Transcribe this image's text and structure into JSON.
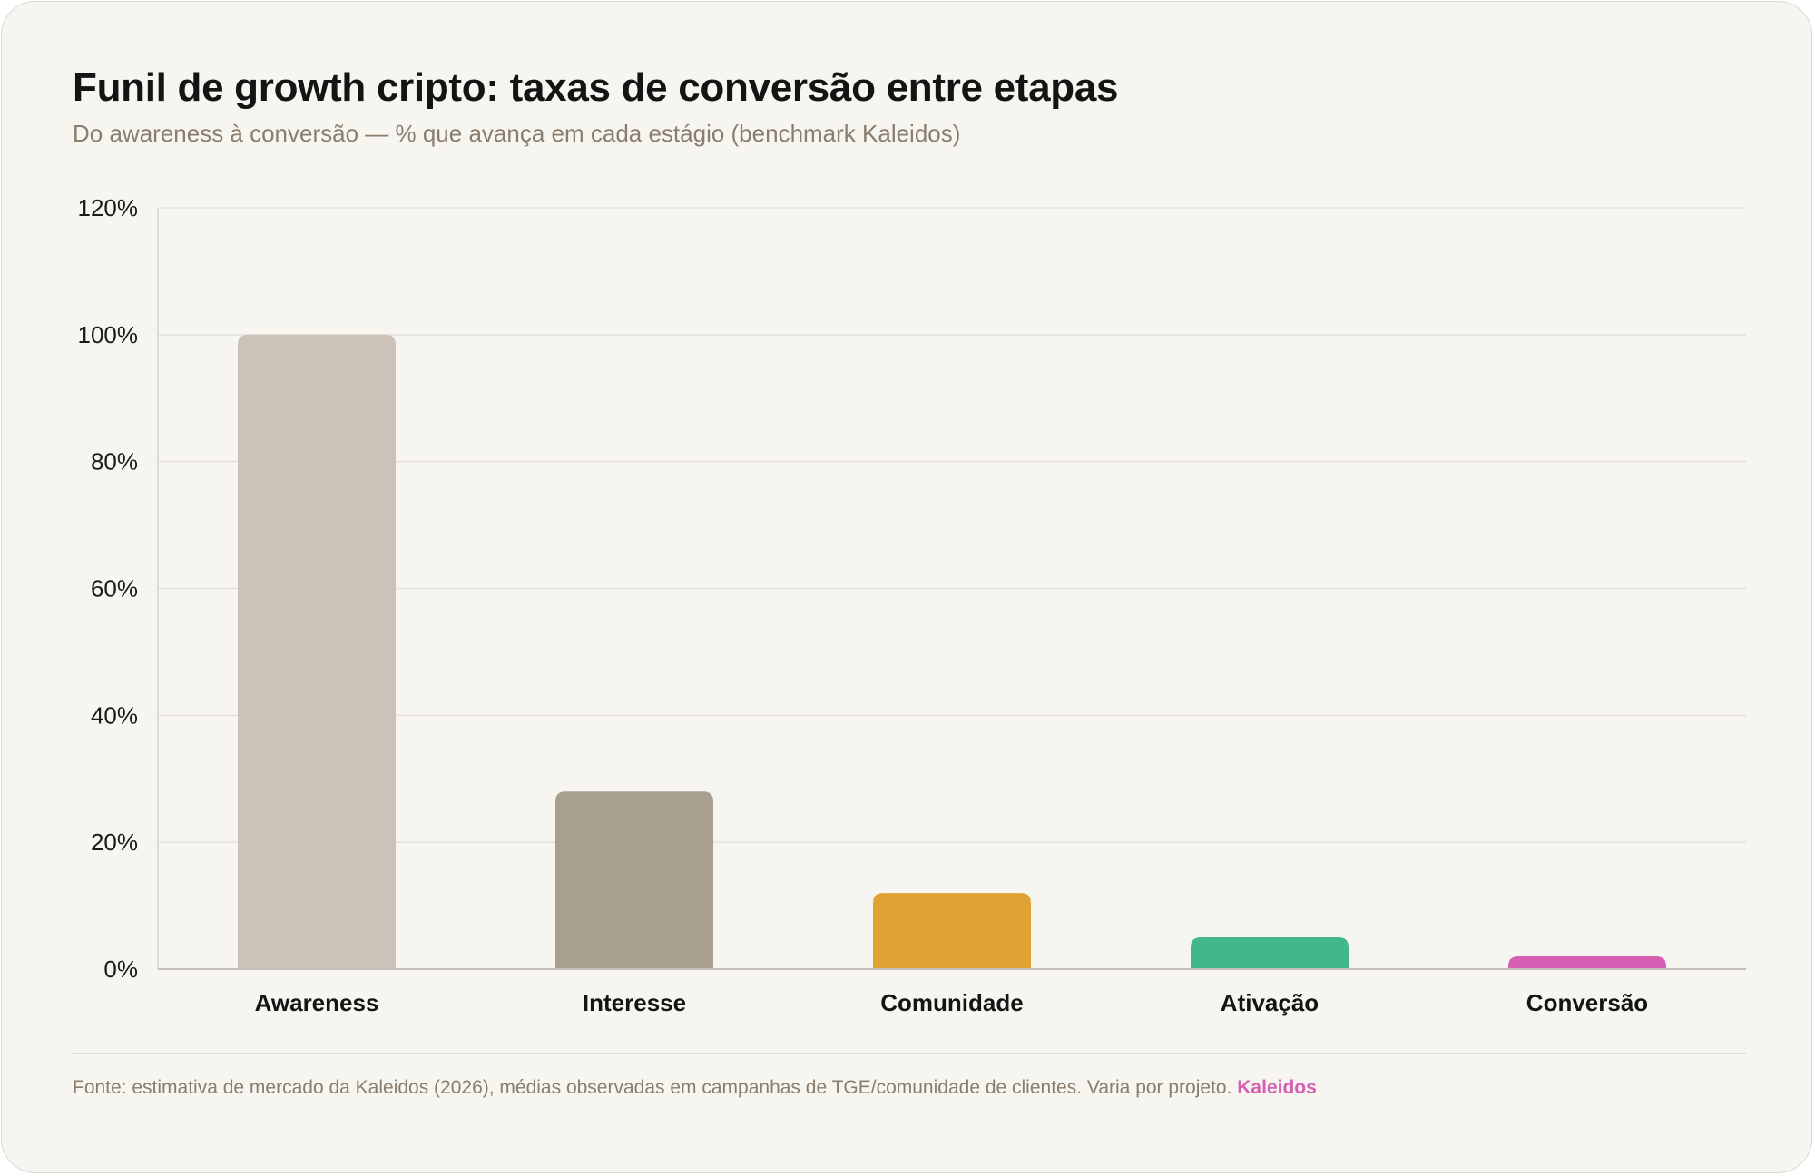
{
  "title": "Funil de growth cripto: taxas de conversão entre etapas",
  "subtitle": "Do awareness à conversão — % que avança em cada estágio (benchmark Kaleidos)",
  "footer": {
    "text": "Fonte: estimativa de mercado da Kaleidos (2026), médias observadas em campanhas de TGE/comunidade de clientes. Varia por projeto.",
    "brand": "Kaleidos"
  },
  "colors": {
    "background": "#f6f5f0",
    "brand": "#d45fb3"
  },
  "chart_data": {
    "type": "bar",
    "title": "Funil de growth cripto: taxas de conversão entre etapas",
    "subtitle": "Do awareness à conversão — % que avança em cada estágio (benchmark Kaleidos)",
    "categories": [
      "Awareness",
      "Interesse",
      "Comunidade",
      "Ativação",
      "Conversão"
    ],
    "values": [
      100,
      28,
      12,
      5,
      2
    ],
    "unit": "%",
    "bar_colors": [
      "#cbc3b8",
      "#a99f91",
      "#e0a233",
      "#43b78c",
      "#d45fb3"
    ],
    "ylim": [
      0,
      120
    ],
    "yticks": [
      0,
      20,
      40,
      60,
      80,
      100,
      120
    ],
    "ytick_labels": [
      "0%",
      "20%",
      "40%",
      "60%",
      "80%",
      "100%",
      "120%"
    ],
    "grid": true,
    "legend": "none"
  }
}
